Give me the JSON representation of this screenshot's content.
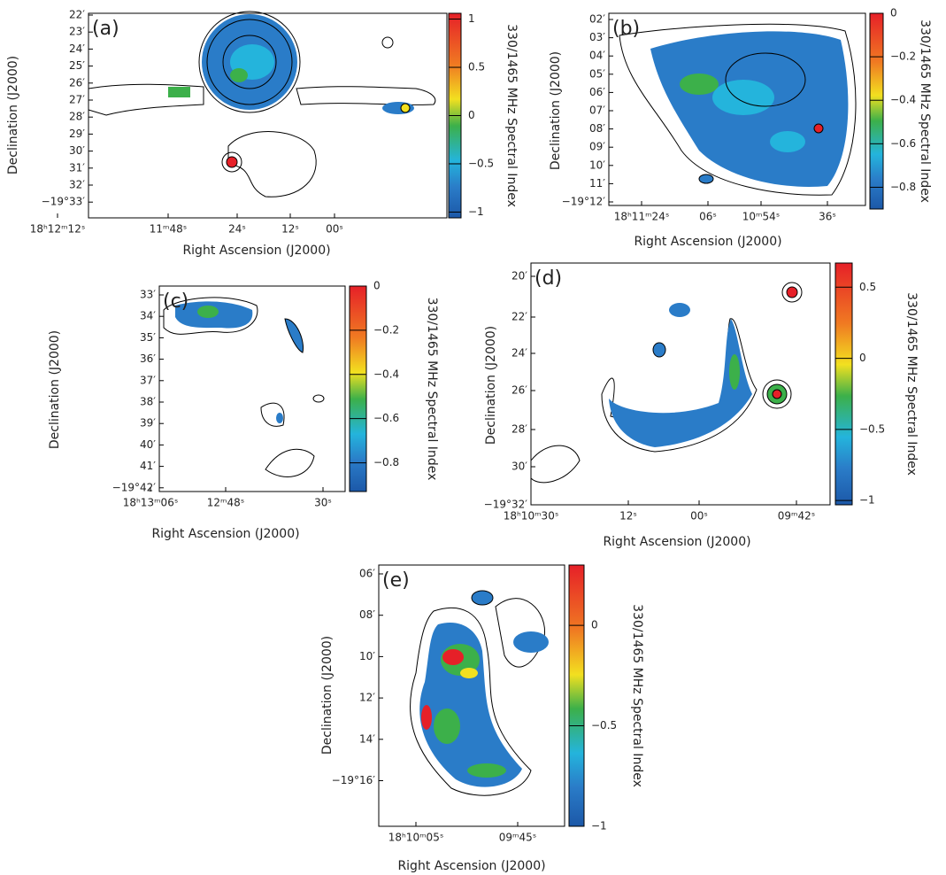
{
  "panels": [
    {
      "label": "(a)",
      "y_label": "Declination (J2000)",
      "x_label": "Right Ascension (J2000)",
      "colorbar_label": "330/1465 MHz Spectral Index",
      "y_ticks": [
        "22′",
        "23′",
        "24′",
        "25′",
        "26′",
        "27′",
        "28′",
        "29′",
        "30′",
        "31′",
        "32′",
        "−19°33′"
      ],
      "x_ticks": [
        "18ʰ12ᵐ12ˢ",
        "11ᵐ48ˢ",
        "24ˢ",
        "12ˢ",
        "00ˢ"
      ],
      "clim": [
        -1.06,
        1.06
      ],
      "colorbar_ticks": [
        1,
        0.5,
        0,
        {
          "value": -0.5,
          "label": "−0.5"
        },
        {
          "value": -1,
          "label": "−1"
        }
      ]
    },
    {
      "label": "(b)",
      "y_label": "Declination (J2000)",
      "x_label": "Right Ascension (J2000)",
      "colorbar_label": "330/1465 MHz Spectral Index",
      "y_ticks": [
        "02′",
        "03′",
        "04′",
        "05′",
        "06′",
        "07′",
        "08′",
        "09′",
        "10′",
        "11′",
        "−19°12′"
      ],
      "x_ticks": [
        "18ʰ11ᵐ24ˢ",
        "06ˢ",
        "10ᵐ54ˢ",
        "36ˢ"
      ],
      "clim": [
        -0.9,
        0
      ],
      "colorbar_ticks": [
        0,
        {
          "value": -0.2,
          "label": "−0.2"
        },
        {
          "value": -0.4,
          "label": "−0.4"
        },
        {
          "value": -0.6,
          "label": "−0.6"
        },
        {
          "value": -0.8,
          "label": "−0.8"
        }
      ]
    },
    {
      "label": "(c)",
      "y_label": "Declination (J2000)",
      "x_label": "Right Ascension (J2000)",
      "colorbar_label": "330/1465 MHz Spectral Index",
      "y_ticks": [
        "33′",
        "34′",
        "35′",
        "36′",
        "37′",
        "38′",
        "39′",
        "40′",
        "41′",
        "−19°42′"
      ],
      "x_ticks": [
        "18ʰ13ᵐ06ˢ",
        "12ᵐ48ˢ",
        "30ˢ"
      ],
      "clim": [
        -0.93,
        0
      ],
      "colorbar_ticks": [
        0,
        {
          "value": -0.2,
          "label": "−0.2"
        },
        {
          "value": -0.4,
          "label": "−0.4"
        },
        {
          "value": -0.6,
          "label": "−0.6"
        },
        {
          "value": -0.8,
          "label": "−0.8"
        }
      ]
    },
    {
      "label": "(d)",
      "y_label": "Declination (J2000)",
      "x_label": "Right Ascension (J2000)",
      "colorbar_label": "330/1465 MHz Spectral Index",
      "y_ticks": [
        "20′",
        "22′",
        "24′",
        "26′",
        "28′",
        "30′",
        "−19°32′"
      ],
      "x_ticks": [
        "18ʰ10ᵐ30ˢ",
        "12ˢ",
        "00ˢ",
        "09ᵐ42ˢ"
      ],
      "clim": [
        -1.03,
        0.67
      ],
      "colorbar_ticks": [
        0.5,
        0,
        {
          "value": -0.5,
          "label": "−0.5"
        },
        {
          "value": -1,
          "label": "−1"
        }
      ]
    },
    {
      "label": "(e)",
      "y_label": "Declination (J2000)",
      "x_label": "Right Ascension (J2000)",
      "colorbar_label": "330/1465 MHz Spectral Index",
      "y_ticks": [
        "06′",
        "08′",
        "10′",
        "12′",
        "14′",
        "−19°16′"
      ],
      "x_ticks": [
        "18ʰ10ᵐ05ˢ",
        "09ᵐ45ˢ"
      ],
      "clim": [
        -1,
        0.3
      ],
      "colorbar_ticks": [
        0,
        {
          "value": -0.5,
          "label": "−0.5"
        },
        {
          "value": -1,
          "label": "−1"
        }
      ]
    }
  ]
}
